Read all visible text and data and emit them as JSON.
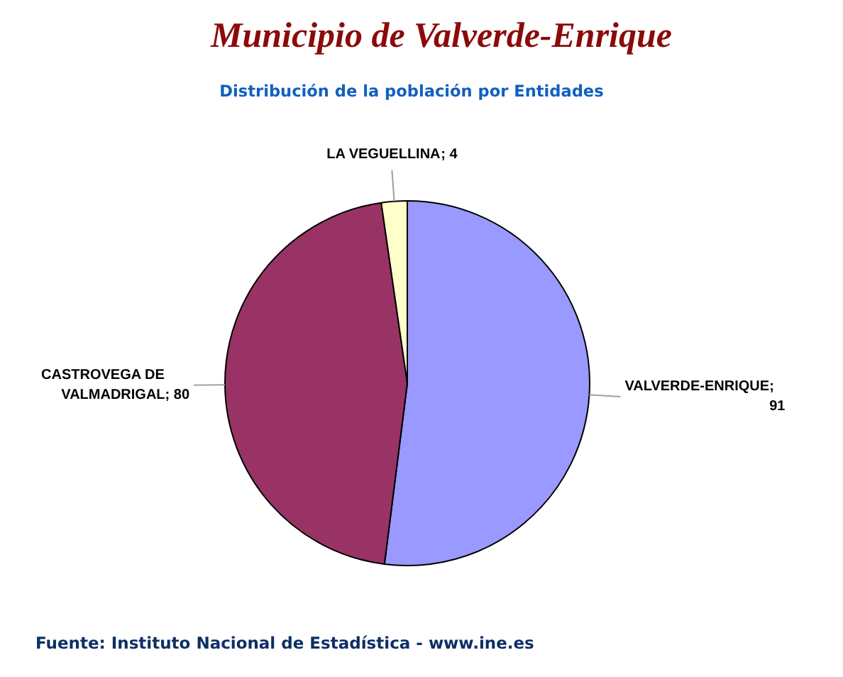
{
  "chart_data": {
    "type": "pie",
    "title": "Municipio de Valverde-Enrique",
    "subtitle": "Distribución de la población por Entidades",
    "categories": [
      "VALVERDE-ENRIQUE",
      "CASTROVEGA DE VALMADRIGAL",
      "LA VEGUELLINA"
    ],
    "values": [
      91,
      80,
      4
    ],
    "colors": [
      "#9999ff",
      "#993366",
      "#ffffcc"
    ],
    "value_labels": [
      "; 91",
      "; 80",
      "; 4"
    ],
    "annotations": [
      "Fuente: Instituto Nacional de Estadística - www.ine.es"
    ]
  }
}
